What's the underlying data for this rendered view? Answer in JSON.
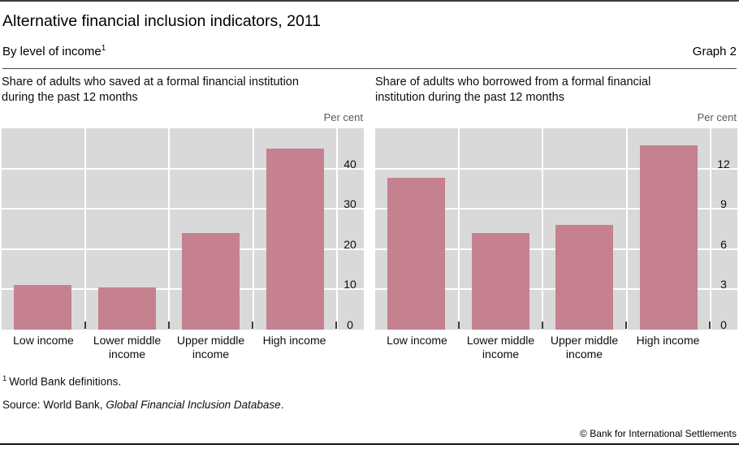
{
  "header": {
    "title": "Alternative financial inclusion indicators, 2011",
    "subtitle": "By level of income",
    "footnote_marker": "1",
    "graph_label": "Graph 2"
  },
  "chart_data": [
    {
      "type": "bar",
      "title": "Share of adults who saved at a formal financial institution during the past 12 months",
      "unit_label": "Per cent",
      "categories": [
        "Low income",
        "Lower middle income",
        "Upper middle income",
        "High income"
      ],
      "values": [
        11,
        10.5,
        24,
        45
      ],
      "xlabel": "",
      "ylabel": "Per cent",
      "ylim": [
        0,
        50
      ],
      "yticks": [
        0,
        10,
        20,
        30,
        40
      ],
      "grid": true,
      "legend": false,
      "bar_color": "#c5818f"
    },
    {
      "type": "bar",
      "title": "Share of adults who borrowed from a formal financial institution during the past 12 months",
      "unit_label": "Per cent",
      "categories": [
        "Low income",
        "Lower middle income",
        "Upper middle income",
        "High income"
      ],
      "values": [
        11.3,
        7.2,
        7.8,
        13.7
      ],
      "xlabel": "",
      "ylabel": "Per cent",
      "ylim": [
        0,
        15
      ],
      "yticks": [
        0,
        3,
        6,
        9,
        12
      ],
      "grid": true,
      "legend": false,
      "bar_color": "#c5818f"
    }
  ],
  "footnote": {
    "marker": "1",
    "text": "World Bank definitions."
  },
  "source": {
    "prefix": "Source: World Bank, ",
    "italic": "Global Financial Inclusion Database",
    "suffix": "."
  },
  "copyright": "© Bank for International Settlements",
  "colors": {
    "bar": "#c5818f",
    "plot_background": "#d9d9d9",
    "gridline": "#ffffff",
    "unit_label_text": "#595959"
  }
}
